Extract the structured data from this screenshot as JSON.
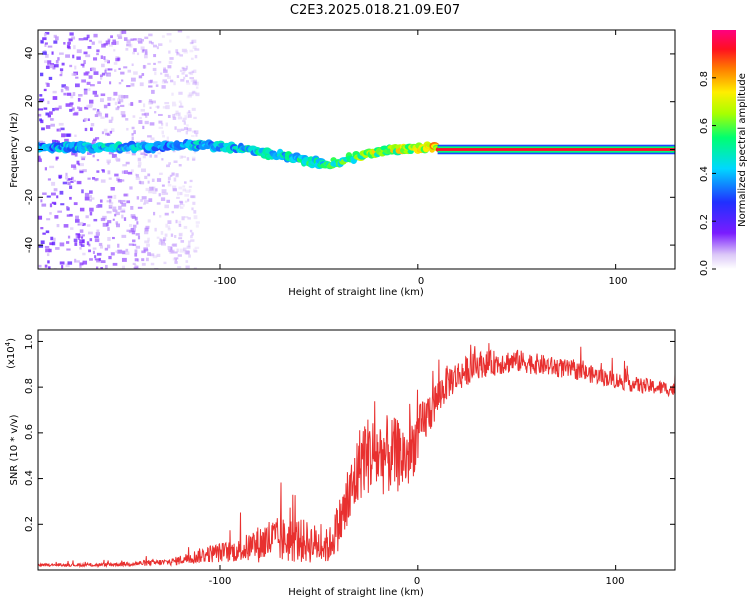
{
  "figure_title": "C2E3.2025.018.21.09.E07",
  "chart_data": [
    {
      "type": "heatmap",
      "xlabel": "Height of straight line (km)",
      "ylabel": "Frequency (Hz)",
      "xlim": [
        -192,
        130
      ],
      "ylim": [
        -50,
        50
      ],
      "xticks": [
        "-100",
        "0",
        "100"
      ],
      "yticks": [
        "40",
        "20",
        "0",
        "-20",
        "-40"
      ],
      "colorbar": {
        "label": "Normalized spectral amplitude",
        "range": [
          0,
          1
        ],
        "ticks": [
          "0.0",
          "0.2",
          "0.4",
          "0.6",
          "0.8"
        ]
      },
      "ridge": [
        {
          "x": -190,
          "y": 1,
          "amp": 0.45
        },
        {
          "x": -170,
          "y": 1,
          "amp": 0.5
        },
        {
          "x": -150,
          "y": 1,
          "amp": 0.5
        },
        {
          "x": -130,
          "y": 1,
          "amp": 0.45
        },
        {
          "x": -110,
          "y": 2,
          "amp": 0.5
        },
        {
          "x": -95,
          "y": 1,
          "amp": 0.5
        },
        {
          "x": -85,
          "y": 0,
          "amp": 0.55
        },
        {
          "x": -75,
          "y": -2,
          "amp": 0.55
        },
        {
          "x": -65,
          "y": -3,
          "amp": 0.55
        },
        {
          "x": -55,
          "y": -5,
          "amp": 0.6
        },
        {
          "x": -45,
          "y": -6,
          "amp": 0.6
        },
        {
          "x": -35,
          "y": -4,
          "amp": 0.65
        },
        {
          "x": -25,
          "y": -2,
          "amp": 0.75
        },
        {
          "x": -15,
          "y": 0,
          "amp": 0.8
        },
        {
          "x": -5,
          "y": 0,
          "amp": 0.8
        },
        {
          "x": 5,
          "y": 1,
          "amp": 0.85
        },
        {
          "x": 10,
          "y": 0,
          "amp": 0.95
        },
        {
          "x": 130,
          "y": 0,
          "amp": 0.95
        }
      ]
    },
    {
      "type": "line",
      "xlabel": "Height of straight line (km)",
      "ylabel": "SNR (10 * v/v)",
      "y_multiplier": "(x10",
      "y_exponent": "4",
      "y_multiplier_close": ")",
      "xlim": [
        -192,
        130
      ],
      "ylim": [
        0,
        1.05
      ],
      "xticks": [
        "-100",
        "0",
        "100"
      ],
      "yticks": [
        "0.2",
        "0.4",
        "0.6",
        "0.8",
        "1.0"
      ],
      "series": [
        {
          "color": "#e8302f",
          "envelope": [
            {
              "x": -192,
              "base": 0.02,
              "noise": 0.01
            },
            {
              "x": -160,
              "base": 0.02,
              "noise": 0.015
            },
            {
              "x": -125,
              "base": 0.03,
              "noise": 0.03
            },
            {
              "x": -105,
              "base": 0.06,
              "noise": 0.08
            },
            {
              "x": -90,
              "base": 0.07,
              "noise": 0.1
            },
            {
              "x": -75,
              "base": 0.1,
              "noise": 0.2
            },
            {
              "x": -60,
              "base": 0.1,
              "noise": 0.2
            },
            {
              "x": -45,
              "base": 0.08,
              "noise": 0.15
            },
            {
              "x": -35,
              "base": 0.25,
              "noise": 0.3
            },
            {
              "x": -28,
              "base": 0.45,
              "noise": 0.35
            },
            {
              "x": -15,
              "base": 0.45,
              "noise": 0.35
            },
            {
              "x": -5,
              "base": 0.45,
              "noise": 0.3
            },
            {
              "x": 5,
              "base": 0.65,
              "noise": 0.2
            },
            {
              "x": 15,
              "base": 0.8,
              "noise": 0.15
            },
            {
              "x": 30,
              "base": 0.88,
              "noise": 0.12
            },
            {
              "x": 50,
              "base": 0.9,
              "noise": 0.1
            },
            {
              "x": 80,
              "base": 0.86,
              "noise": 0.08
            },
            {
              "x": 110,
              "base": 0.8,
              "noise": 0.07
            },
            {
              "x": 130,
              "base": 0.78,
              "noise": 0.06
            }
          ]
        }
      ]
    }
  ]
}
